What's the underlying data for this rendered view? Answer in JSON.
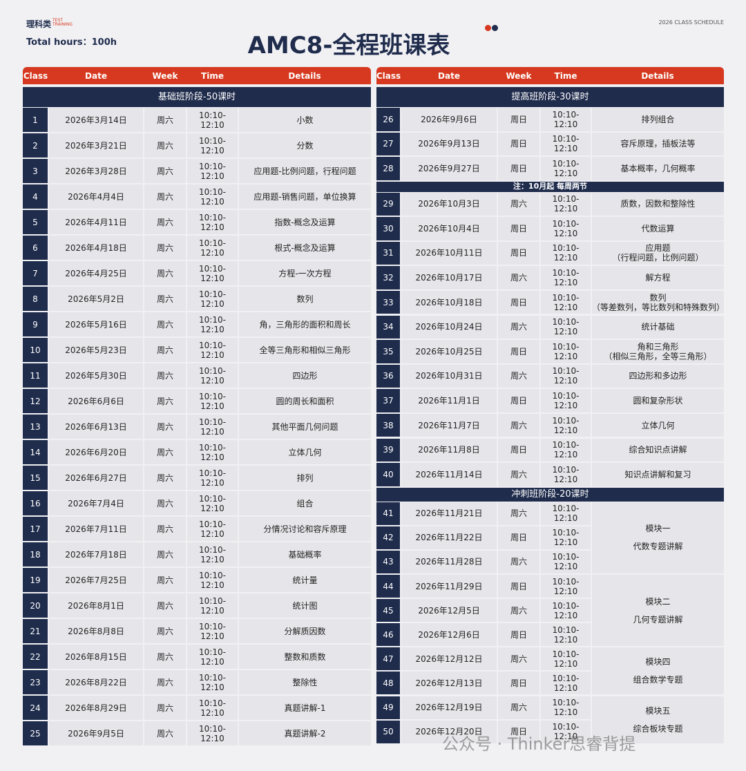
{
  "header": {
    "logo": "理科类",
    "logo_sub": [
      "TEST",
      "TRAINING"
    ],
    "total_hours": "Total hours：100h",
    "title": "AMC8-全程班课表",
    "top_right": "2026 CLASS SCHEDULE"
  },
  "columns": [
    "Class",
    "Date",
    "Week",
    "Time",
    "Details"
  ],
  "left": {
    "blocks": [
      {
        "title": "基础班阶段-50课时",
        "rows": [
          [
            "1",
            "2026年3月14日",
            "周六",
            "10:10-12:10",
            [
              "小数"
            ]
          ],
          [
            "2",
            "2026年3月21日",
            "周六",
            "10:10-12:10",
            [
              "分数"
            ]
          ],
          [
            "3",
            "2026年3月28日",
            "周六",
            "10:10-12:10",
            [
              "应用题-比例问题，行程问题"
            ]
          ],
          [
            "4",
            "2026年4月4日",
            "周六",
            "10:10-12:10",
            [
              "应用题-销售问题，单位换算"
            ]
          ],
          [
            "5",
            "2026年4月11日",
            "周六",
            "10:10-12:10",
            [
              "指数-概念及运算"
            ]
          ],
          [
            "6",
            "2026年4月18日",
            "周六",
            "10:10-12:10",
            [
              "根式-概念及运算"
            ]
          ],
          [
            "7",
            "2026年4月25日",
            "周六",
            "10:10-12:10",
            [
              "方程-一次方程"
            ]
          ],
          [
            "8",
            "2026年5月2日",
            "周六",
            "10:10-12:10",
            [
              "数列"
            ]
          ],
          [
            "9",
            "2026年5月16日",
            "周六",
            "10:10-12:10",
            [
              "角，三角形的面积和周长"
            ]
          ],
          [
            "10",
            "2026年5月23日",
            "周六",
            "10:10-12:10",
            [
              "全等三角形和相似三角形"
            ]
          ],
          [
            "11",
            "2026年5月30日",
            "周六",
            "10:10-12:10",
            [
              "四边形"
            ]
          ],
          [
            "12",
            "2026年6月6日",
            "周六",
            "10:10-12:10",
            [
              "圆的周长和面积"
            ]
          ],
          [
            "13",
            "2026年6月13日",
            "周六",
            "10:10-12:10",
            [
              "其他平面几何问题"
            ]
          ],
          [
            "14",
            "2026年6月20日",
            "周六",
            "10:10-12:10",
            [
              "立体几何"
            ]
          ],
          [
            "15",
            "2026年6月27日",
            "周六",
            "10:10-12:10",
            [
              "排列"
            ]
          ],
          [
            "16",
            "2026年7月4日",
            "周六",
            "10:10-12:10",
            [
              "组合"
            ]
          ],
          [
            "17",
            "2026年7月11日",
            "周六",
            "10:10-12:10",
            [
              "分情况讨论和容斥原理"
            ]
          ],
          [
            "18",
            "2026年7月18日",
            "周六",
            "10:10-12:10",
            [
              "基础概率"
            ]
          ],
          [
            "19",
            "2026年7月25日",
            "周六",
            "10:10-12:10",
            [
              "统计量"
            ]
          ],
          [
            "20",
            "2026年8月1日",
            "周六",
            "10:10-12:10",
            [
              "统计图"
            ]
          ],
          [
            "21",
            "2026年8月8日",
            "周六",
            "10:10-12:10",
            [
              "分解质因数"
            ]
          ],
          [
            "22",
            "2026年8月15日",
            "周六",
            "10:10-12:10",
            [
              "整数和质数"
            ]
          ],
          [
            "23",
            "2026年8月22日",
            "周六",
            "10:10-12:10",
            [
              "整除性"
            ]
          ],
          [
            "24",
            "2026年8月29日",
            "周六",
            "10:10-12:10",
            [
              "真题讲解-1"
            ]
          ],
          [
            "25",
            "2026年9月5日",
            "周六",
            "10:10-12:10",
            [
              "真题讲解-2"
            ]
          ]
        ]
      }
    ]
  },
  "right": {
    "blocks": [
      {
        "title": "提高班阶段-30课时",
        "rows": [
          [
            "26",
            "2026年9月6日",
            "周日",
            "10:10-12:10",
            [
              "排列组合"
            ]
          ],
          [
            "27",
            "2026年9月13日",
            "周日",
            "10:10-12:10",
            [
              "容斥原理，插板法等"
            ]
          ],
          [
            "28",
            "2026年9月27日",
            "周日",
            "10:10-12:10",
            [
              "基本概率，几何概率"
            ]
          ]
        ]
      },
      {
        "note": "注：10月起 每周两节",
        "rows": [
          [
            "29",
            "2026年10月3日",
            "周六",
            "10:10-12:10",
            [
              "质数，因数和整除性"
            ]
          ],
          [
            "30",
            "2026年10月4日",
            "周日",
            "10:10-12:10",
            [
              "代数运算"
            ]
          ],
          [
            "31",
            "2026年10月11日",
            "周日",
            "10:10-12:10",
            [
              "应用题",
              "（行程问题，比例问题）"
            ]
          ],
          [
            "32",
            "2026年10月17日",
            "周六",
            "10:10-12:10",
            [
              "解方程"
            ]
          ],
          [
            "33",
            "2026年10月18日",
            "周日",
            "10:10-12:10",
            [
              "数列",
              "（等差数列，等比数列和特殊数列）"
            ]
          ],
          [
            "34",
            "2026年10月24日",
            "周六",
            "10:10-12:10",
            [
              "统计基础"
            ]
          ],
          [
            "35",
            "2026年10月25日",
            "周日",
            "10:10-12:10",
            [
              "角和三角形",
              "（相似三角形，全等三角形）"
            ]
          ],
          [
            "36",
            "2026年10月31日",
            "周六",
            "10:10-12:10",
            [
              "四边形和多边形"
            ]
          ],
          [
            "37",
            "2026年11月1日",
            "周日",
            "10:10-12:10",
            [
              "圆和复杂形状"
            ]
          ],
          [
            "38",
            "2026年11月7日",
            "周六",
            "10:10-12:10",
            [
              "立体几何"
            ]
          ],
          [
            "39",
            "2026年11月8日",
            "周日",
            "10:10-12:10",
            [
              "综合知识点讲解"
            ]
          ],
          [
            "40",
            "2026年11月14日",
            "周六",
            "10:10-12:10",
            [
              "知识点讲解和复习"
            ]
          ]
        ]
      },
      {
        "title": "冲刺班阶段-20课时",
        "groups": [
          {
            "details": [
              "模块一",
              "代数专题讲解"
            ],
            "rows": [
              [
                "41",
                "2026年11月21日",
                "周六",
                "10:10-12:10"
              ],
              [
                "42",
                "2026年11月22日",
                "周日",
                "10:10-12:10"
              ],
              [
                "43",
                "2026年11月28日",
                "周六",
                "10:10-12:10"
              ]
            ]
          },
          {
            "details": [
              "模块二",
              "几何专题讲解"
            ],
            "rows": [
              [
                "44",
                "2026年11月29日",
                "周日",
                "10:10-12:10"
              ],
              [
                "45",
                "2026年12月5日",
                "周六",
                "10:10-12:10"
              ],
              [
                "46",
                "2026年12月6日",
                "周日",
                "10:10-12:10"
              ]
            ]
          },
          {
            "details": [
              "模块四",
              "组合数学专题"
            ],
            "rows": [
              [
                "47",
                "2026年12月12日",
                "周六",
                "10:10-12:10"
              ],
              [
                "48",
                "2026年12月13日",
                "周日",
                "10:10-12:10"
              ]
            ]
          },
          {
            "details": [
              "模块五",
              "综合板块专题"
            ],
            "rows": [
              [
                "49",
                "2026年12月19日",
                "周六",
                "10:10-12:10"
              ],
              [
                "50",
                "2026年12月20日",
                "周日",
                "10:10-12:10"
              ]
            ]
          }
        ]
      }
    ]
  },
  "watermark": "公众号 · Thinker思睿背提"
}
